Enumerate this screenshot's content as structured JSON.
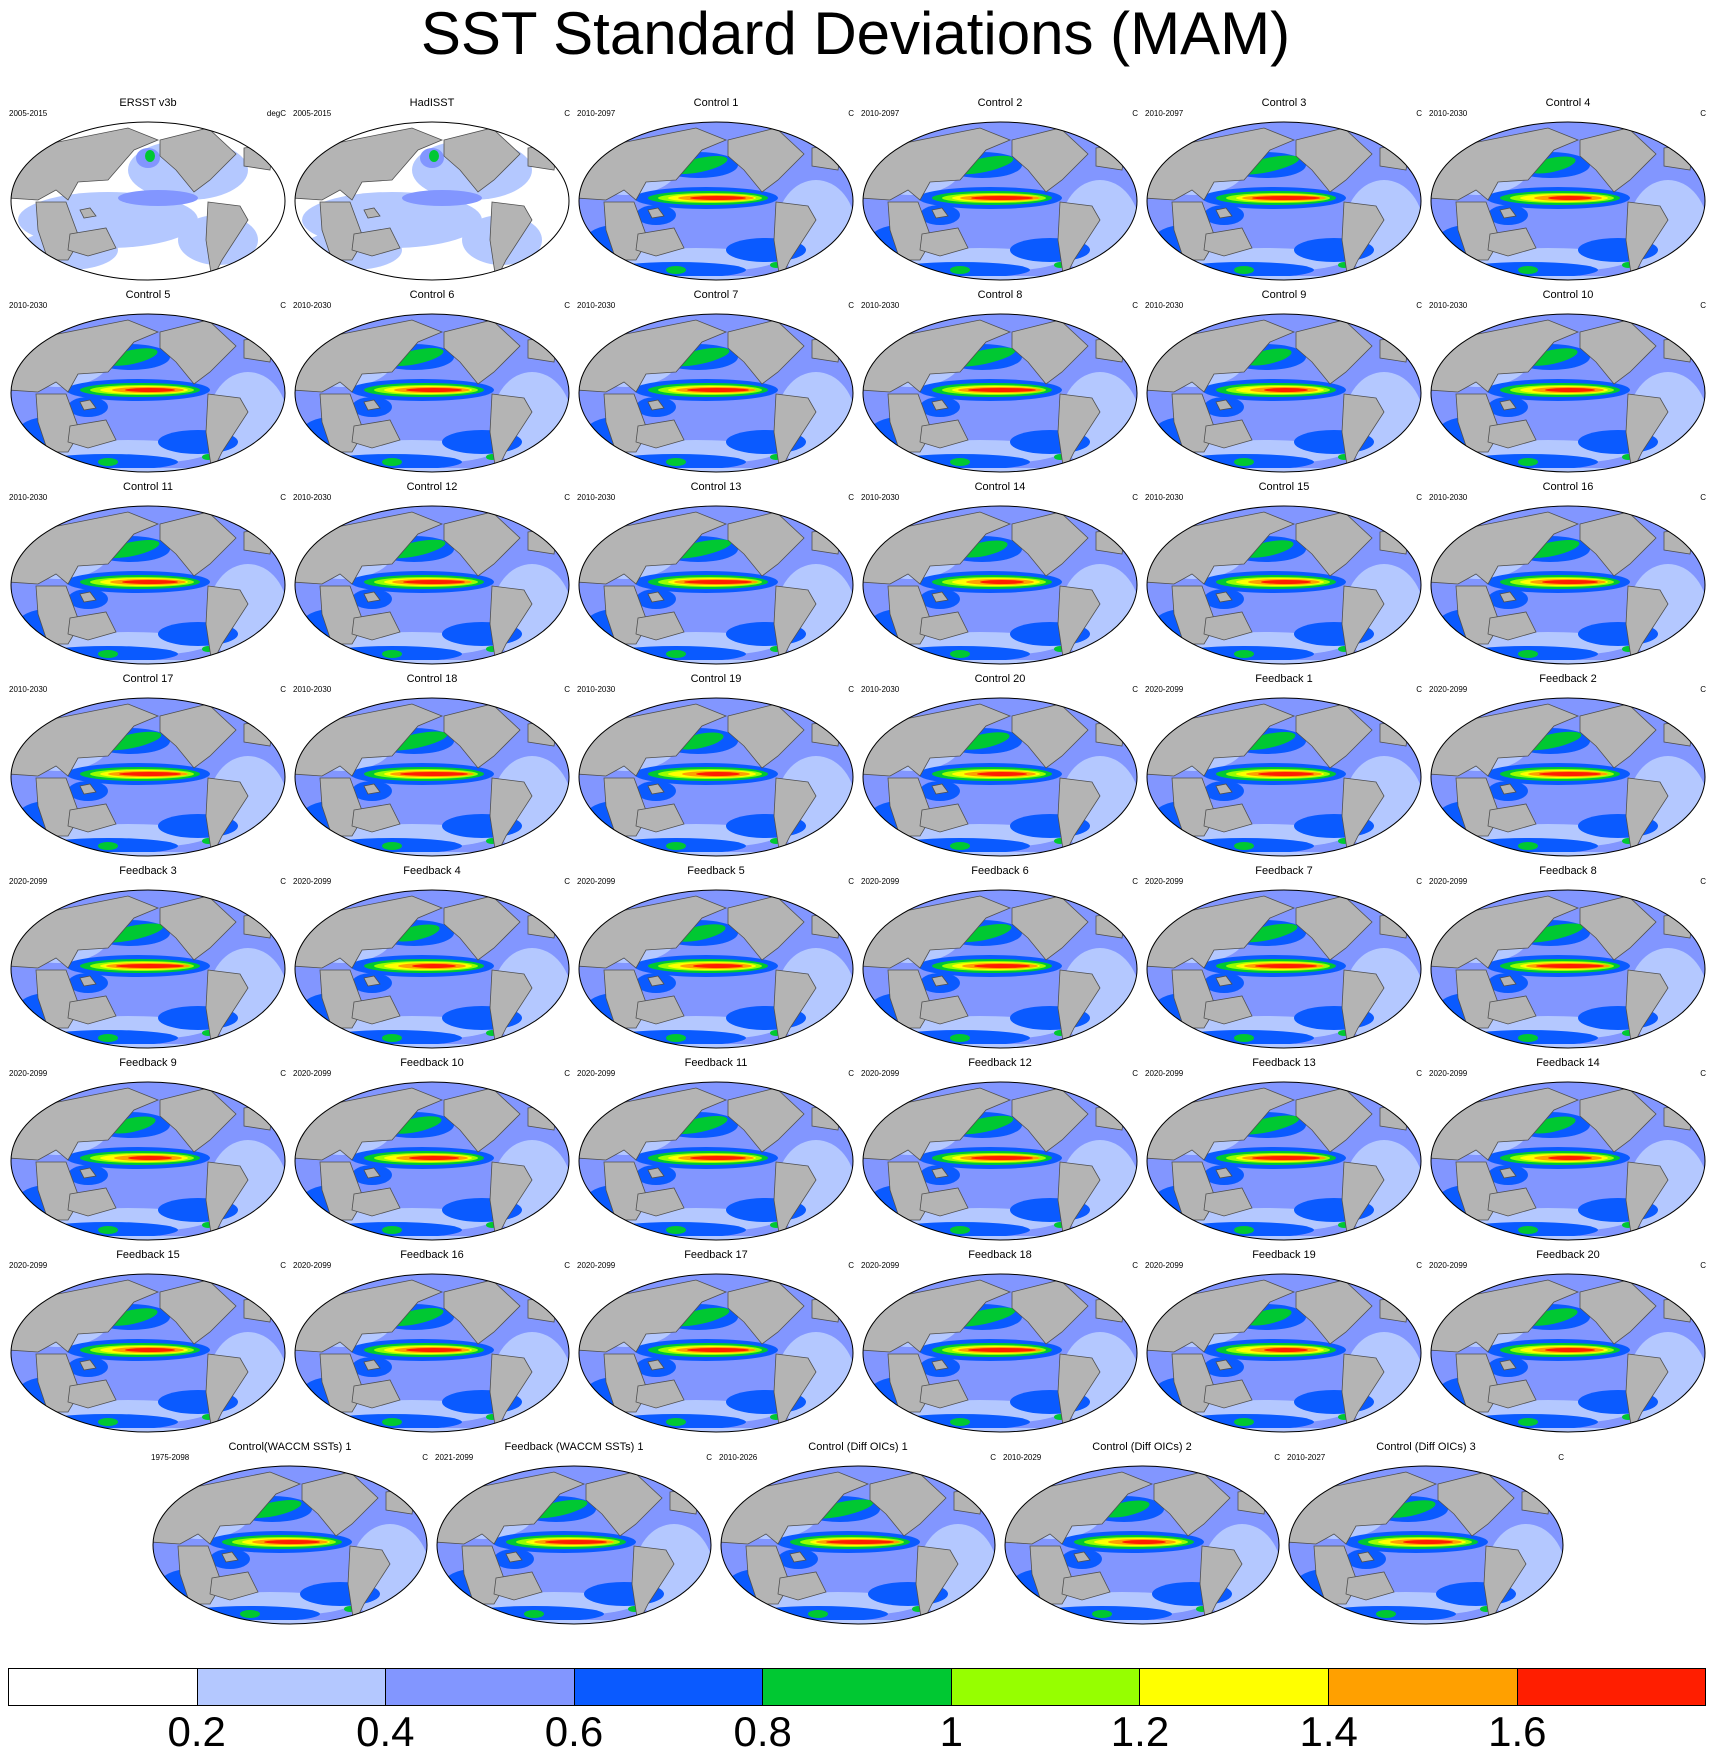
{
  "title": "SST Standard Deviations (MAM)",
  "panels": [
    {
      "title": "ERSST v3b",
      "period": "2005-2015",
      "units": "degC",
      "kind": "obs"
    },
    {
      "title": "HadISST",
      "period": "2005-2015",
      "units": "C",
      "kind": "obs"
    },
    {
      "title": "Control 1",
      "period": "2010-2097",
      "units": "C",
      "kind": "control"
    },
    {
      "title": "Control 2",
      "period": "2010-2097",
      "units": "C",
      "kind": "control"
    },
    {
      "title": "Control 3",
      "period": "2010-2097",
      "units": "C",
      "kind": "control"
    },
    {
      "title": "Control 4",
      "period": "2010-2030",
      "units": "C",
      "kind": "control"
    },
    {
      "title": "Control 5",
      "period": "2010-2030",
      "units": "C",
      "kind": "control"
    },
    {
      "title": "Control 6",
      "period": "2010-2030",
      "units": "C",
      "kind": "control"
    },
    {
      "title": "Control 7",
      "period": "2010-2030",
      "units": "C",
      "kind": "control"
    },
    {
      "title": "Control 8",
      "period": "2010-2030",
      "units": "C",
      "kind": "control"
    },
    {
      "title": "Control 9",
      "period": "2010-2030",
      "units": "C",
      "kind": "control"
    },
    {
      "title": "Control 10",
      "period": "2010-2030",
      "units": "C",
      "kind": "control"
    },
    {
      "title": "Control 11",
      "period": "2010-2030",
      "units": "C",
      "kind": "control"
    },
    {
      "title": "Control 12",
      "period": "2010-2030",
      "units": "C",
      "kind": "control"
    },
    {
      "title": "Control 13",
      "period": "2010-2030",
      "units": "C",
      "kind": "control"
    },
    {
      "title": "Control 14",
      "period": "2010-2030",
      "units": "C",
      "kind": "control"
    },
    {
      "title": "Control 15",
      "period": "2010-2030",
      "units": "C",
      "kind": "control"
    },
    {
      "title": "Control 16",
      "period": "2010-2030",
      "units": "C",
      "kind": "control"
    },
    {
      "title": "Control 17",
      "period": "2010-2030",
      "units": "C",
      "kind": "control"
    },
    {
      "title": "Control 18",
      "period": "2010-2030",
      "units": "C",
      "kind": "control"
    },
    {
      "title": "Control 19",
      "period": "2010-2030",
      "units": "C",
      "kind": "control"
    },
    {
      "title": "Control 20",
      "period": "2010-2030",
      "units": "C",
      "kind": "control"
    },
    {
      "title": "Feedback 1",
      "period": "2020-2099",
      "units": "C",
      "kind": "feedback"
    },
    {
      "title": "Feedback 2",
      "period": "2020-2099",
      "units": "C",
      "kind": "feedback"
    },
    {
      "title": "Feedback 3",
      "period": "2020-2099",
      "units": "C",
      "kind": "feedback"
    },
    {
      "title": "Feedback 4",
      "period": "2020-2099",
      "units": "C",
      "kind": "feedback"
    },
    {
      "title": "Feedback 5",
      "period": "2020-2099",
      "units": "C",
      "kind": "feedback"
    },
    {
      "title": "Feedback 6",
      "period": "2020-2099",
      "units": "C",
      "kind": "feedback"
    },
    {
      "title": "Feedback 7",
      "period": "2020-2099",
      "units": "C",
      "kind": "feedback"
    },
    {
      "title": "Feedback 8",
      "period": "2020-2099",
      "units": "C",
      "kind": "feedback"
    },
    {
      "title": "Feedback 9",
      "period": "2020-2099",
      "units": "C",
      "kind": "feedback"
    },
    {
      "title": "Feedback 10",
      "period": "2020-2099",
      "units": "C",
      "kind": "feedback"
    },
    {
      "title": "Feedback 11",
      "period": "2020-2099",
      "units": "C",
      "kind": "feedback"
    },
    {
      "title": "Feedback 12",
      "period": "2020-2099",
      "units": "C",
      "kind": "feedback"
    },
    {
      "title": "Feedback 13",
      "period": "2020-2099",
      "units": "C",
      "kind": "feedback"
    },
    {
      "title": "Feedback 14",
      "period": "2020-2099",
      "units": "C",
      "kind": "feedback"
    },
    {
      "title": "Feedback 15",
      "period": "2020-2099",
      "units": "C",
      "kind": "feedback"
    },
    {
      "title": "Feedback 16",
      "period": "2020-2099",
      "units": "C",
      "kind": "feedback"
    },
    {
      "title": "Feedback 17",
      "period": "2020-2099",
      "units": "C",
      "kind": "feedback"
    },
    {
      "title": "Feedback 18",
      "period": "2020-2099",
      "units": "C",
      "kind": "feedback"
    },
    {
      "title": "Feedback 19",
      "period": "2020-2099",
      "units": "C",
      "kind": "feedback"
    },
    {
      "title": "Feedback 20",
      "period": "2020-2099",
      "units": "C",
      "kind": "feedback"
    },
    {
      "title": "Control(WACCM SSTs) 1",
      "period": "1975-2098",
      "units": "C",
      "kind": "control"
    },
    {
      "title": "Feedback (WACCM SSTs) 1",
      "period": "2021-2099",
      "units": "C",
      "kind": "feedback"
    },
    {
      "title": "Control (Diff OICs) 1",
      "period": "2010-2026",
      "units": "C",
      "kind": "control"
    },
    {
      "title": "Control (Diff OICs) 2",
      "period": "2010-2029",
      "units": "C",
      "kind": "control"
    },
    {
      "title": "Control (Diff OICs) 3",
      "period": "2010-2027",
      "units": "C",
      "kind": "control"
    }
  ],
  "colorbar": {
    "colors": [
      "#ffffff",
      "#b4c8ff",
      "#8296ff",
      "#0a5aff",
      "#00c832",
      "#96ff00",
      "#ffff00",
      "#ffa000",
      "#ff1e00"
    ],
    "labels": [
      "0.2",
      "0.4",
      "0.6",
      "0.8",
      "1",
      "1.2",
      "1.4",
      "1.6"
    ]
  },
  "style": {
    "land_color": "#b4b4b4",
    "coast_color": "#505050"
  }
}
